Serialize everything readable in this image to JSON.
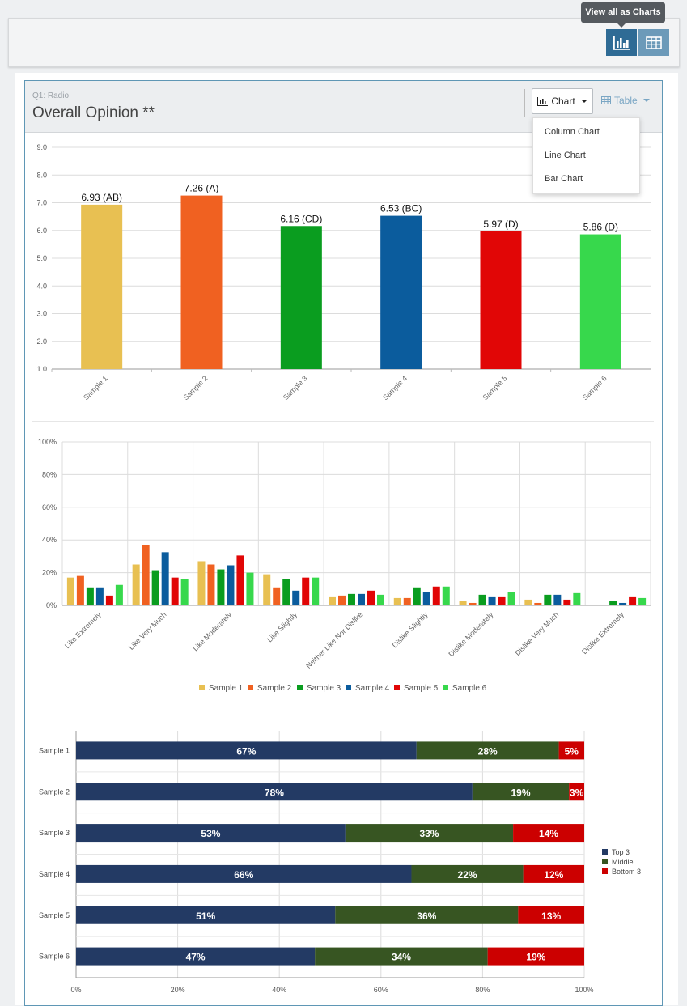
{
  "tooltip": "View all as Charts",
  "toolbar": {
    "charts_icon": "column-chart-icon",
    "table_icon": "table-grid-icon"
  },
  "question": {
    "label": "Q1: Radio",
    "title": "Overall Opinion **"
  },
  "view_selector": {
    "chart_label": "Chart",
    "table_label": "Table"
  },
  "chart_menu": {
    "items": [
      "Column Chart",
      "Line Chart",
      "Bar Chart"
    ]
  },
  "colors": {
    "samples": [
      "#e8c052",
      "#f06121",
      "#0a9d1f",
      "#0b5c9d",
      "#e10606",
      "#37d84c"
    ],
    "top3": "#233a64",
    "middle": "#375522",
    "bottom3": "#cc0000"
  },
  "chart_data": [
    {
      "type": "bar",
      "title": "",
      "categories": [
        "Sample 1",
        "Sample 2",
        "Sample 3",
        "Sample 4",
        "Sample 5",
        "Sample 6"
      ],
      "values": [
        6.93,
        7.26,
        6.16,
        6.53,
        5.97,
        5.86
      ],
      "data_labels": [
        "6.93 (AB)",
        "7.26 (A)",
        "6.16 (CD)",
        "6.53 (BC)",
        "5.97 (D)",
        "5.86 (D)"
      ],
      "ylim": [
        1,
        9
      ],
      "yticks": [
        "1.0",
        "2.0",
        "3.0",
        "4.0",
        "5.0",
        "6.0",
        "7.0",
        "8.0",
        "9.0"
      ]
    },
    {
      "type": "bar",
      "categories": [
        "Like Extremely",
        "Like Very Much",
        "Like Moderately",
        "Like Slightly",
        "Neither Like Nor Dislike",
        "Dislike Slightly",
        "Dislike Moderately",
        "Dislike Very Much",
        "Dislike Extremely"
      ],
      "ylim": [
        0,
        100
      ],
      "yticks": [
        "0%",
        "20%",
        "40%",
        "60%",
        "80%",
        "100%"
      ],
      "series": [
        {
          "name": "Sample 1",
          "values": [
            17,
            25,
            27,
            19,
            5,
            4.5,
            2.5,
            3.5,
            0
          ]
        },
        {
          "name": "Sample 2",
          "values": [
            18,
            37,
            25,
            11,
            6,
            4.5,
            1.5,
            1.5,
            0
          ]
        },
        {
          "name": "Sample 3",
          "values": [
            11,
            21.5,
            22,
            16,
            7,
            11,
            6.5,
            6.5,
            2.5
          ]
        },
        {
          "name": "Sample 4",
          "values": [
            11,
            32.5,
            24.5,
            9,
            7,
            8,
            5,
            6.5,
            1.5
          ]
        },
        {
          "name": "Sample 5",
          "values": [
            6,
            17,
            30.5,
            17,
            9,
            11.5,
            5,
            3.5,
            5
          ]
        },
        {
          "name": "Sample 6",
          "values": [
            12.5,
            16,
            20,
            17,
            6.5,
            11.5,
            8,
            7.5,
            4.5
          ]
        }
      ]
    },
    {
      "type": "stacked-bar-horizontal",
      "categories": [
        "Sample 1",
        "Sample 2",
        "Sample 3",
        "Sample 4",
        "Sample 5",
        "Sample 6"
      ],
      "xlim": [
        0,
        100
      ],
      "xticks": [
        "0%",
        "20%",
        "40%",
        "60%",
        "80%",
        "100%"
      ],
      "series": [
        {
          "name": "Top 3",
          "values": [
            67,
            78,
            53,
            66,
            51,
            47
          ],
          "labels": [
            "67%",
            "78%",
            "53%",
            "66%",
            "51%",
            "47%"
          ]
        },
        {
          "name": "Middle",
          "values": [
            28,
            19,
            33,
            22,
            36,
            34
          ],
          "labels": [
            "28%",
            "19%",
            "33%",
            "22%",
            "36%",
            "34%"
          ]
        },
        {
          "name": "Bottom 3",
          "values": [
            5,
            3,
            14,
            12,
            13,
            19
          ],
          "labels": [
            "5%",
            "3%",
            "14%",
            "12%",
            "13%",
            "19%"
          ]
        }
      ]
    }
  ]
}
